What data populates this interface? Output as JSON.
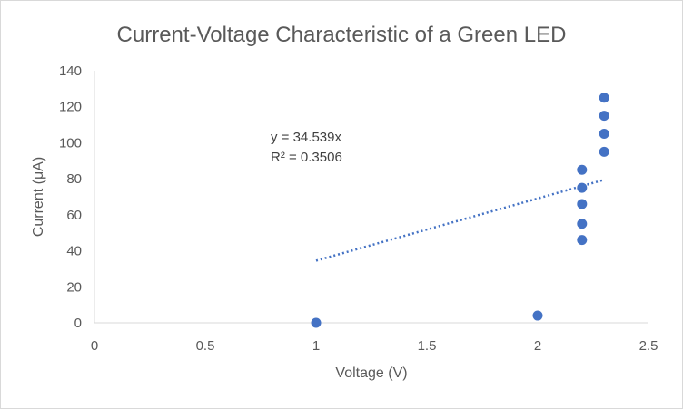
{
  "chart_data": {
    "type": "scatter",
    "title": "Current-Voltage Characteristic of a Green LED",
    "xlabel": "Voltage (V)",
    "ylabel": "Current (μA)",
    "xlim": [
      0,
      2.5
    ],
    "ylim": [
      0,
      140
    ],
    "x_ticks": [
      "0",
      "0.5",
      "1",
      "1.5",
      "2",
      "2.5"
    ],
    "y_ticks": [
      "0",
      "20",
      "40",
      "60",
      "80",
      "100",
      "120",
      "140"
    ],
    "grid": false,
    "legend": "none",
    "series": [
      {
        "color": "#4472C4",
        "points": [
          {
            "x": 1.0,
            "y": 0
          },
          {
            "x": 2.0,
            "y": 4
          },
          {
            "x": 2.2,
            "y": 46
          },
          {
            "x": 2.2,
            "y": 55
          },
          {
            "x": 2.2,
            "y": 66
          },
          {
            "x": 2.2,
            "y": 75
          },
          {
            "x": 2.2,
            "y": 85
          },
          {
            "x": 2.3,
            "y": 95
          },
          {
            "x": 2.3,
            "y": 105
          },
          {
            "x": 2.3,
            "y": 115
          },
          {
            "x": 2.3,
            "y": 125
          }
        ]
      }
    ],
    "trendline": {
      "type": "linear",
      "style": "dotted",
      "color": "#4472C4",
      "slope": 34.539,
      "x_range": [
        1.0,
        2.3
      ],
      "equation": "y = 34.539x",
      "r_squared": "R² = 0.3506"
    }
  }
}
